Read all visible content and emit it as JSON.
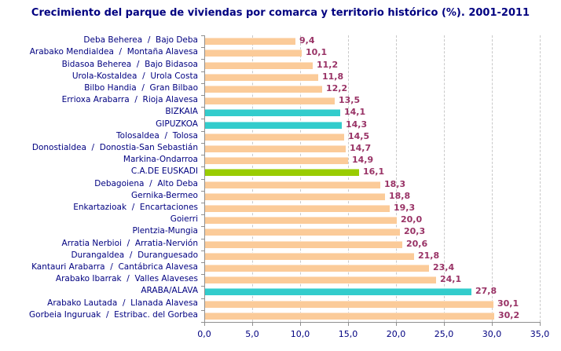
{
  "chart_data": {
    "type": "bar",
    "orientation": "horizontal",
    "title": "Crecimiento del parque de viviendas por comarca y territorio histórico (%). 2001-2011",
    "xlabel": "",
    "ylabel": "",
    "xlim": [
      0,
      35
    ],
    "grid": "vertical-dashed",
    "legend": "none",
    "x_ticks": [
      {
        "value": 0,
        "label": "0,0"
      },
      {
        "value": 5,
        "label": "5,0"
      },
      {
        "value": 10,
        "label": "10,0"
      },
      {
        "value": 15,
        "label": "15,0"
      },
      {
        "value": 20,
        "label": "20,0"
      },
      {
        "value": 25,
        "label": "25,0"
      },
      {
        "value": 30,
        "label": "30,0"
      },
      {
        "value": 35,
        "label": "35,0"
      }
    ],
    "colors": {
      "comarca": "#FBCB99",
      "territorio": "#33CCCC",
      "euskadi": "#99CC00",
      "value_label": "#993366",
      "axis_text": "#000080",
      "title_text": "#000080",
      "gridline": "#C9C9C9",
      "axis_line": "#8F8F8F"
    },
    "bars": [
      {
        "label": "Deba Beherea  /  Bajo Deba",
        "value": 9.4,
        "display": "9,4",
        "type": "comarca"
      },
      {
        "label": "Arabako Mendialdea  /  Montaña Alavesa",
        "value": 10.1,
        "display": "10,1",
        "type": "comarca"
      },
      {
        "label": "Bidasoa Beherea  /  Bajo Bidasoa",
        "value": 11.2,
        "display": "11,2",
        "type": "comarca"
      },
      {
        "label": "Urola-Kostaldea  /  Urola Costa",
        "value": 11.8,
        "display": "11,8",
        "type": "comarca"
      },
      {
        "label": "Bilbo Handia  /  Gran Bilbao",
        "value": 12.2,
        "display": "12,2",
        "type": "comarca"
      },
      {
        "label": "Errioxa Arabarra  /  Rioja Alavesa",
        "value": 13.5,
        "display": "13,5",
        "type": "comarca"
      },
      {
        "label": "BIZKAIA",
        "value": 14.1,
        "display": "14,1",
        "type": "territorio"
      },
      {
        "label": "GIPUZKOA",
        "value": 14.3,
        "display": "14,3",
        "type": "territorio"
      },
      {
        "label": "Tolosaldea  /  Tolosa",
        "value": 14.5,
        "display": "14,5",
        "type": "comarca"
      },
      {
        "label": "Donostialdea  /  Donostia-San Sebastián",
        "value": 14.7,
        "display": "14,7",
        "type": "comarca"
      },
      {
        "label": "Markina-Ondarroa",
        "value": 14.9,
        "display": "14,9",
        "type": "comarca"
      },
      {
        "label": "C.A.DE EUSKADI",
        "value": 16.1,
        "display": "16,1",
        "type": "euskadi"
      },
      {
        "label": "Debagoiena  /  Alto Deba",
        "value": 18.3,
        "display": "18,3",
        "type": "comarca"
      },
      {
        "label": "Gernika-Bermeo",
        "value": 18.8,
        "display": "18,8",
        "type": "comarca"
      },
      {
        "label": "Enkartazioak  /  Encartaciones",
        "value": 19.3,
        "display": "19,3",
        "type": "comarca"
      },
      {
        "label": "Goierri",
        "value": 20.0,
        "display": "20,0",
        "type": "comarca"
      },
      {
        "label": "Plentzia-Mungia",
        "value": 20.3,
        "display": "20,3",
        "type": "comarca"
      },
      {
        "label": "Arratia Nerbioi  /  Arratia-Nervión",
        "value": 20.6,
        "display": "20,6",
        "type": "comarca"
      },
      {
        "label": "Durangaldea  /  Duranguesado",
        "value": 21.8,
        "display": "21,8",
        "type": "comarca"
      },
      {
        "label": "Kantauri Arabarra  /  Cantábrica Alavesa",
        "value": 23.4,
        "display": "23,4",
        "type": "comarca"
      },
      {
        "label": "Arabako Ibarrak  /  Valles Alaveses",
        "value": 24.1,
        "display": "24,1",
        "type": "comarca"
      },
      {
        "label": "ARABA/ALAVA",
        "value": 27.8,
        "display": "27,8",
        "type": "territorio"
      },
      {
        "label": "Arabako Lautada  /  Llanada Alavesa",
        "value": 30.1,
        "display": "30,1",
        "type": "comarca"
      },
      {
        "label": "Gorbeia Inguruak  /  Estribac. del Gorbea",
        "value": 30.2,
        "display": "30,2",
        "type": "comarca"
      }
    ]
  }
}
